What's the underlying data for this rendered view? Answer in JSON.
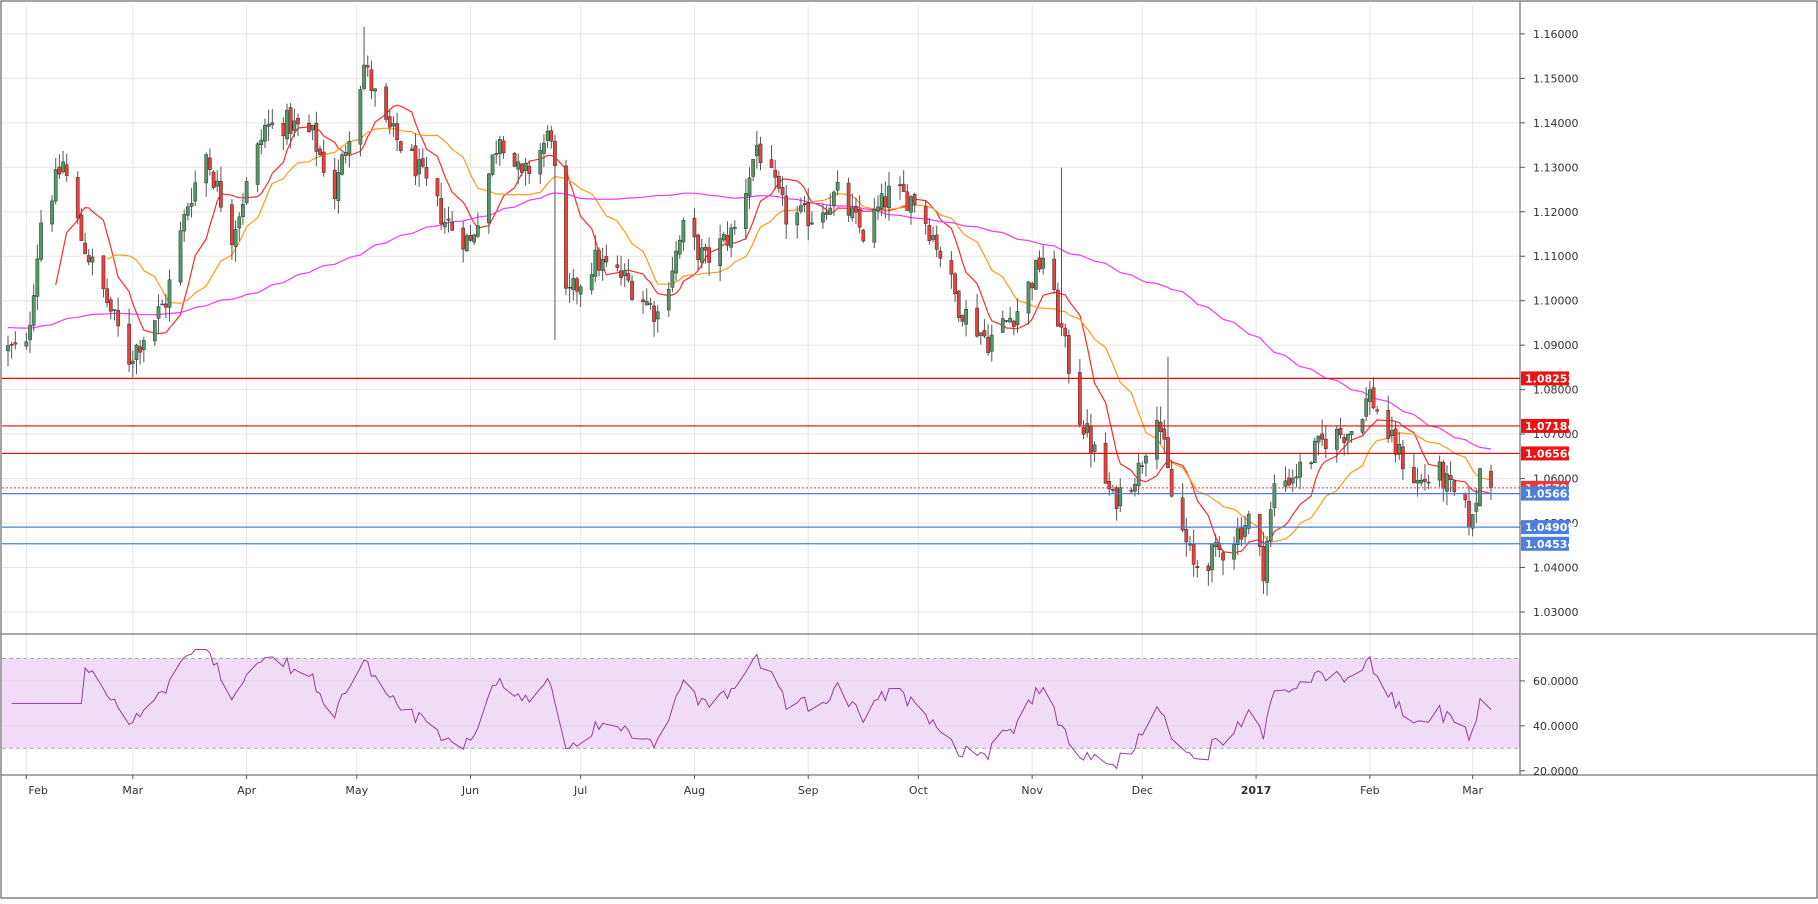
{
  "chart_data": [
    {
      "type": "candlestick",
      "name": "price",
      "y_axis": {
        "min": 1.0255,
        "max": 1.1665,
        "ticks": [
          "1.16000",
          "1.15000",
          "1.14000",
          "1.13000",
          "1.12000",
          "1.11000",
          "1.10000",
          "1.09000",
          "1.08000",
          "1.07000",
          "1.06000",
          "1.05000",
          "1.04000",
          "1.03000"
        ]
      },
      "x_axis": {
        "labels": [
          "Feb",
          "Mar",
          "Apr",
          "May",
          "Jun",
          "Jul",
          "Aug",
          "Sep",
          "Oct",
          "Nov",
          "Dec",
          "2017",
          "Feb",
          "Mar"
        ],
        "bold": [
          "2017"
        ]
      },
      "horizontal_levels": [
        {
          "value": 1.08253,
          "label": "1.08253",
          "kind": "resistance",
          "color": "#ff0000"
        },
        {
          "value": 1.07184,
          "label": "1.07184",
          "kind": "resistance",
          "color": "#ff0000"
        },
        {
          "value": 1.06566,
          "label": "1.06566",
          "kind": "resistance",
          "color": "#ff0000"
        },
        {
          "value": 1.05792,
          "label": "1.05792",
          "kind": "current-price",
          "color": "#e83a3a"
        },
        {
          "value": 1.05662,
          "label": "1.05662",
          "kind": "support",
          "color": "#4a7fe0"
        },
        {
          "value": 1.04909,
          "label": "1.04909",
          "kind": "support",
          "color": "#4a7fe0"
        },
        {
          "value": 1.04534,
          "label": "1.04534",
          "kind": "support",
          "color": "#4a7fe0"
        }
      ],
      "close_anchors": [
        [
          "2016-02-01",
          1.089
        ],
        [
          "2016-02-05",
          1.118
        ],
        [
          "2016-02-11",
          1.131
        ],
        [
          "2016-02-16",
          1.114
        ],
        [
          "2016-02-22",
          1.102
        ],
        [
          "2016-02-29",
          1.087
        ],
        [
          "2016-03-10",
          1.1
        ],
        [
          "2016-03-16",
          1.122
        ],
        [
          "2016-03-21",
          1.133
        ],
        [
          "2016-03-28",
          1.115
        ],
        [
          "2016-04-06",
          1.139
        ],
        [
          "2016-04-12",
          1.14
        ],
        [
          "2016-04-19",
          1.137
        ],
        [
          "2016-04-25",
          1.124
        ],
        [
          "2016-05-03",
          1.153
        ],
        [
          "2016-05-09",
          1.139
        ],
        [
          "2016-05-16",
          1.132
        ],
        [
          "2016-05-25",
          1.118
        ],
        [
          "2016-06-01",
          1.113
        ],
        [
          "2016-06-09",
          1.138
        ],
        [
          "2016-06-15",
          1.127
        ],
        [
          "2016-06-23",
          1.138
        ],
        [
          "2016-06-27",
          1.1
        ],
        [
          "2016-07-05",
          1.109
        ],
        [
          "2016-07-13",
          1.105
        ],
        [
          "2016-07-22",
          1.097
        ],
        [
          "2016-07-29",
          1.116
        ],
        [
          "2016-08-04",
          1.109
        ],
        [
          "2016-08-12",
          1.116
        ],
        [
          "2016-08-18",
          1.135
        ],
        [
          "2016-08-26",
          1.119
        ],
        [
          "2016-09-02",
          1.119
        ],
        [
          "2016-09-09",
          1.124
        ],
        [
          "2016-09-16",
          1.115
        ],
        [
          "2016-09-23",
          1.124
        ],
        [
          "2016-09-30",
          1.123
        ],
        [
          "2016-10-06",
          1.113
        ],
        [
          "2016-10-12",
          1.099
        ],
        [
          "2016-10-20",
          1.091
        ],
        [
          "2016-10-28",
          1.098
        ],
        [
          "2016-11-04",
          1.11
        ],
        [
          "2016-11-09",
          1.093
        ],
        [
          "2016-11-14",
          1.074
        ],
        [
          "2016-11-23",
          1.055
        ],
        [
          "2016-11-30",
          1.062
        ],
        [
          "2016-12-05",
          1.076
        ],
        [
          "2016-12-09",
          1.056
        ],
        [
          "2016-12-15",
          1.04
        ],
        [
          "2016-12-23",
          1.044
        ],
        [
          "2016-12-30",
          1.051
        ],
        [
          "2017-01-03",
          1.04
        ],
        [
          "2017-01-06",
          1.058
        ],
        [
          "2017-01-13",
          1.062
        ],
        [
          "2017-01-20",
          1.069
        ],
        [
          "2017-01-27",
          1.071
        ],
        [
          "2017-02-01",
          1.079
        ],
        [
          "2017-02-07",
          1.068
        ],
        [
          "2017-02-14",
          1.059
        ],
        [
          "2017-02-20",
          1.061
        ],
        [
          "2017-02-24",
          1.056
        ],
        [
          "2017-03-01",
          1.05
        ],
        [
          "2017-03-03",
          1.062
        ],
        [
          "2017-03-06",
          1.0579
        ]
      ],
      "moving_averages": [
        {
          "period": 10,
          "color": "#ff2a2a"
        },
        {
          "period": 20,
          "color": "#ff9a1a"
        },
        {
          "period": 100,
          "color": "#ff33ff"
        }
      ],
      "colors": {
        "up": "#4f9a66",
        "down": "#e8403a",
        "wick": "#555555"
      },
      "grid": true
    },
    {
      "type": "line",
      "name": "RSI",
      "y_axis": {
        "min": 19,
        "max": 80,
        "ticks": [
          "60.0000",
          "40.0000",
          "20.0000"
        ]
      },
      "band": [
        30,
        70
      ],
      "band_color": "#f1dcf8",
      "color": "#9b3aa0",
      "grid": true
    }
  ]
}
